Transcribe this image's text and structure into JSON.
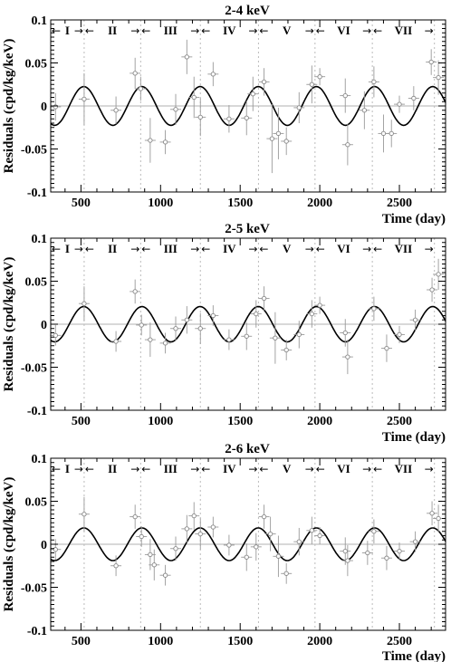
{
  "ylabel": "Residuals (cpd/kg/keV)",
  "xlabel": "Time (day)",
  "colors": {
    "curve": "#000000",
    "points": "#888888",
    "boundaries": "#bbbbbb"
  },
  "chart_data": [
    {
      "type": "scatter",
      "title": "2-4 keV",
      "xlabel": "Time (day)",
      "ylabel": "Residuals (cpd/kg/keV)",
      "xlim": [
        310,
        2790
      ],
      "ylim": [
        -0.1,
        0.1
      ],
      "xticks": [
        500,
        1000,
        1500,
        2000,
        2500
      ],
      "yticks": [
        -0.1,
        -0.05,
        0,
        0.05,
        0.1
      ],
      "ytick_labels": [
        "-0.1",
        "-0.05",
        "0",
        "0.05",
        "0.1"
      ],
      "grid": false,
      "phases": [
        "I",
        "II",
        "III",
        "IV",
        "V",
        "VI",
        "VII"
      ],
      "phase_boundaries": [
        520,
        875,
        1250,
        1615,
        1970,
        2330,
        2720
      ],
      "fit": {
        "amplitude": 0.0225,
        "period": 365.25,
        "phase": 152.5
      },
      "points": [
        {
          "x": 340,
          "y": -0.001,
          "err": 0.016
        },
        {
          "x": 520,
          "y": 0.008,
          "err": 0.03
        },
        {
          "x": 720,
          "y": -0.005,
          "err": 0.016
        },
        {
          "x": 840,
          "y": 0.038,
          "err": 0.018
        },
        {
          "x": 875,
          "y": 0.02,
          "err": 0.014
        },
        {
          "x": 935,
          "y": -0.04,
          "err": 0.026
        },
        {
          "x": 1030,
          "y": -0.042,
          "err": 0.014
        },
        {
          "x": 1095,
          "y": -0.004,
          "err": 0.018
        },
        {
          "x": 1165,
          "y": 0.057,
          "err": 0.02
        },
        {
          "x": 1210,
          "y": 0.01,
          "err": 0.024
        },
        {
          "x": 1250,
          "y": -0.013,
          "err": 0.022
        },
        {
          "x": 1330,
          "y": 0.037,
          "err": 0.014
        },
        {
          "x": 1430,
          "y": -0.015,
          "err": 0.016
        },
        {
          "x": 1540,
          "y": -0.014,
          "err": 0.02
        },
        {
          "x": 1580,
          "y": 0.014,
          "err": 0.02
        },
        {
          "x": 1650,
          "y": 0.028,
          "err": 0.016
        },
        {
          "x": 1700,
          "y": -0.038,
          "err": 0.04
        },
        {
          "x": 1740,
          "y": -0.032,
          "err": 0.03
        },
        {
          "x": 1790,
          "y": -0.041,
          "err": 0.016
        },
        {
          "x": 1870,
          "y": -0.002,
          "err": 0.018
        },
        {
          "x": 1950,
          "y": 0.025,
          "err": 0.022
        },
        {
          "x": 2000,
          "y": 0.034,
          "err": 0.01
        },
        {
          "x": 2160,
          "y": 0.012,
          "err": 0.02
        },
        {
          "x": 2175,
          "y": -0.045,
          "err": 0.024
        },
        {
          "x": 2280,
          "y": -0.005,
          "err": 0.022
        },
        {
          "x": 2340,
          "y": 0.028,
          "err": 0.018
        },
        {
          "x": 2400,
          "y": -0.032,
          "err": 0.022
        },
        {
          "x": 2450,
          "y": -0.032,
          "err": 0.016
        },
        {
          "x": 2500,
          "y": 0.002,
          "err": 0.01
        },
        {
          "x": 2590,
          "y": 0.009,
          "err": 0.014
        },
        {
          "x": 2700,
          "y": 0.051,
          "err": 0.015
        },
        {
          "x": 2745,
          "y": 0.033,
          "err": 0.02
        }
      ]
    },
    {
      "type": "scatter",
      "title": "2-5 keV",
      "xlabel": "Time (day)",
      "ylabel": "Residuals (cpd/kg/keV)",
      "xlim": [
        310,
        2790
      ],
      "ylim": [
        -0.1,
        0.1
      ],
      "xticks": [
        500,
        1000,
        1500,
        2000,
        2500
      ],
      "yticks": [
        -0.1,
        -0.05,
        0,
        0.05,
        0.1
      ],
      "ytick_labels": [
        "-0.1",
        "-0.05",
        "0",
        "0.05",
        "0.1"
      ],
      "grid": false,
      "phases": [
        "I",
        "II",
        "III",
        "IV",
        "V",
        "VI",
        "VII"
      ],
      "phase_boundaries": [
        520,
        875,
        1250,
        1615,
        1970,
        2330,
        2720
      ],
      "fit": {
        "amplitude": 0.0205,
        "period": 365.25,
        "phase": 152.5
      },
      "points": [
        {
          "x": 340,
          "y": -0.013,
          "err": 0.012
        },
        {
          "x": 520,
          "y": 0.024,
          "err": 0.02
        },
        {
          "x": 720,
          "y": -0.02,
          "err": 0.012
        },
        {
          "x": 840,
          "y": 0.038,
          "err": 0.014
        },
        {
          "x": 880,
          "y": -0.001,
          "err": 0.012
        },
        {
          "x": 935,
          "y": -0.018,
          "err": 0.02
        },
        {
          "x": 1030,
          "y": -0.022,
          "err": 0.012
        },
        {
          "x": 1095,
          "y": -0.005,
          "err": 0.014
        },
        {
          "x": 1165,
          "y": 0.005,
          "err": 0.016
        },
        {
          "x": 1250,
          "y": -0.005,
          "err": 0.018
        },
        {
          "x": 1330,
          "y": 0.01,
          "err": 0.012
        },
        {
          "x": 1430,
          "y": -0.018,
          "err": 0.012
        },
        {
          "x": 1540,
          "y": -0.014,
          "err": 0.016
        },
        {
          "x": 1600,
          "y": 0.012,
          "err": 0.016
        },
        {
          "x": 1650,
          "y": 0.03,
          "err": 0.014
        },
        {
          "x": 1720,
          "y": -0.016,
          "err": 0.03
        },
        {
          "x": 1790,
          "y": -0.03,
          "err": 0.012
        },
        {
          "x": 1870,
          "y": -0.012,
          "err": 0.016
        },
        {
          "x": 1950,
          "y": 0.012,
          "err": 0.016
        },
        {
          "x": 2000,
          "y": 0.022,
          "err": 0.01
        },
        {
          "x": 2160,
          "y": -0.01,
          "err": 0.016
        },
        {
          "x": 2175,
          "y": -0.038,
          "err": 0.02
        },
        {
          "x": 2340,
          "y": 0.018,
          "err": 0.014
        },
        {
          "x": 2420,
          "y": -0.028,
          "err": 0.016
        },
        {
          "x": 2500,
          "y": -0.012,
          "err": 0.01
        },
        {
          "x": 2600,
          "y": 0.005,
          "err": 0.012
        },
        {
          "x": 2705,
          "y": 0.04,
          "err": 0.014
        },
        {
          "x": 2745,
          "y": 0.058,
          "err": 0.018
        }
      ]
    },
    {
      "type": "scatter",
      "title": "2-6 keV",
      "xlabel": "Time (day)",
      "ylabel": "Residuals (cpd/kg/keV)",
      "xlim": [
        310,
        2790
      ],
      "ylim": [
        -0.1,
        0.1
      ],
      "xticks": [
        500,
        1000,
        1500,
        2000,
        2500
      ],
      "yticks": [
        -0.1,
        -0.05,
        0,
        0.05,
        0.1
      ],
      "ytick_labels": [
        "-0.1",
        "-0.05",
        "0",
        "0.05",
        "0.1"
      ],
      "grid": false,
      "phases": [
        "I",
        "II",
        "III",
        "IV",
        "V",
        "VI",
        "VII"
      ],
      "phase_boundaries": [
        520,
        875,
        1250,
        1615,
        1970,
        2330,
        2720
      ],
      "fit": {
        "amplitude": 0.019,
        "period": 365.25,
        "phase": 152.5
      },
      "points": [
        {
          "x": 340,
          "y": -0.006,
          "err": 0.012
        },
        {
          "x": 520,
          "y": 0.035,
          "err": 0.02
        },
        {
          "x": 720,
          "y": -0.025,
          "err": 0.012
        },
        {
          "x": 840,
          "y": 0.032,
          "err": 0.014
        },
        {
          "x": 880,
          "y": 0.009,
          "err": 0.012
        },
        {
          "x": 935,
          "y": -0.012,
          "err": 0.018
        },
        {
          "x": 960,
          "y": -0.024,
          "err": 0.018
        },
        {
          "x": 1030,
          "y": -0.036,
          "err": 0.012
        },
        {
          "x": 1095,
          "y": -0.005,
          "err": 0.014
        },
        {
          "x": 1165,
          "y": 0.018,
          "err": 0.016
        },
        {
          "x": 1210,
          "y": 0.033,
          "err": 0.016
        },
        {
          "x": 1250,
          "y": 0.012,
          "err": 0.018
        },
        {
          "x": 1330,
          "y": 0.02,
          "err": 0.012
        },
        {
          "x": 1430,
          "y": -0.001,
          "err": 0.012
        },
        {
          "x": 1540,
          "y": -0.015,
          "err": 0.016
        },
        {
          "x": 1600,
          "y": -0.003,
          "err": 0.016
        },
        {
          "x": 1650,
          "y": 0.032,
          "err": 0.014
        },
        {
          "x": 1690,
          "y": 0.012,
          "err": 0.02
        },
        {
          "x": 1740,
          "y": -0.014,
          "err": 0.024
        },
        {
          "x": 1790,
          "y": -0.034,
          "err": 0.012
        },
        {
          "x": 1870,
          "y": 0.003,
          "err": 0.016
        },
        {
          "x": 1950,
          "y": 0.016,
          "err": 0.016
        },
        {
          "x": 2000,
          "y": 0.01,
          "err": 0.01
        },
        {
          "x": 2160,
          "y": -0.008,
          "err": 0.016
        },
        {
          "x": 2175,
          "y": -0.019,
          "err": 0.018
        },
        {
          "x": 2300,
          "y": -0.01,
          "err": 0.014
        },
        {
          "x": 2340,
          "y": 0.015,
          "err": 0.014
        },
        {
          "x": 2420,
          "y": -0.016,
          "err": 0.014
        },
        {
          "x": 2500,
          "y": -0.008,
          "err": 0.01
        },
        {
          "x": 2600,
          "y": 0.003,
          "err": 0.012
        },
        {
          "x": 2705,
          "y": 0.036,
          "err": 0.014
        },
        {
          "x": 2745,
          "y": 0.03,
          "err": 0.016
        }
      ]
    }
  ]
}
